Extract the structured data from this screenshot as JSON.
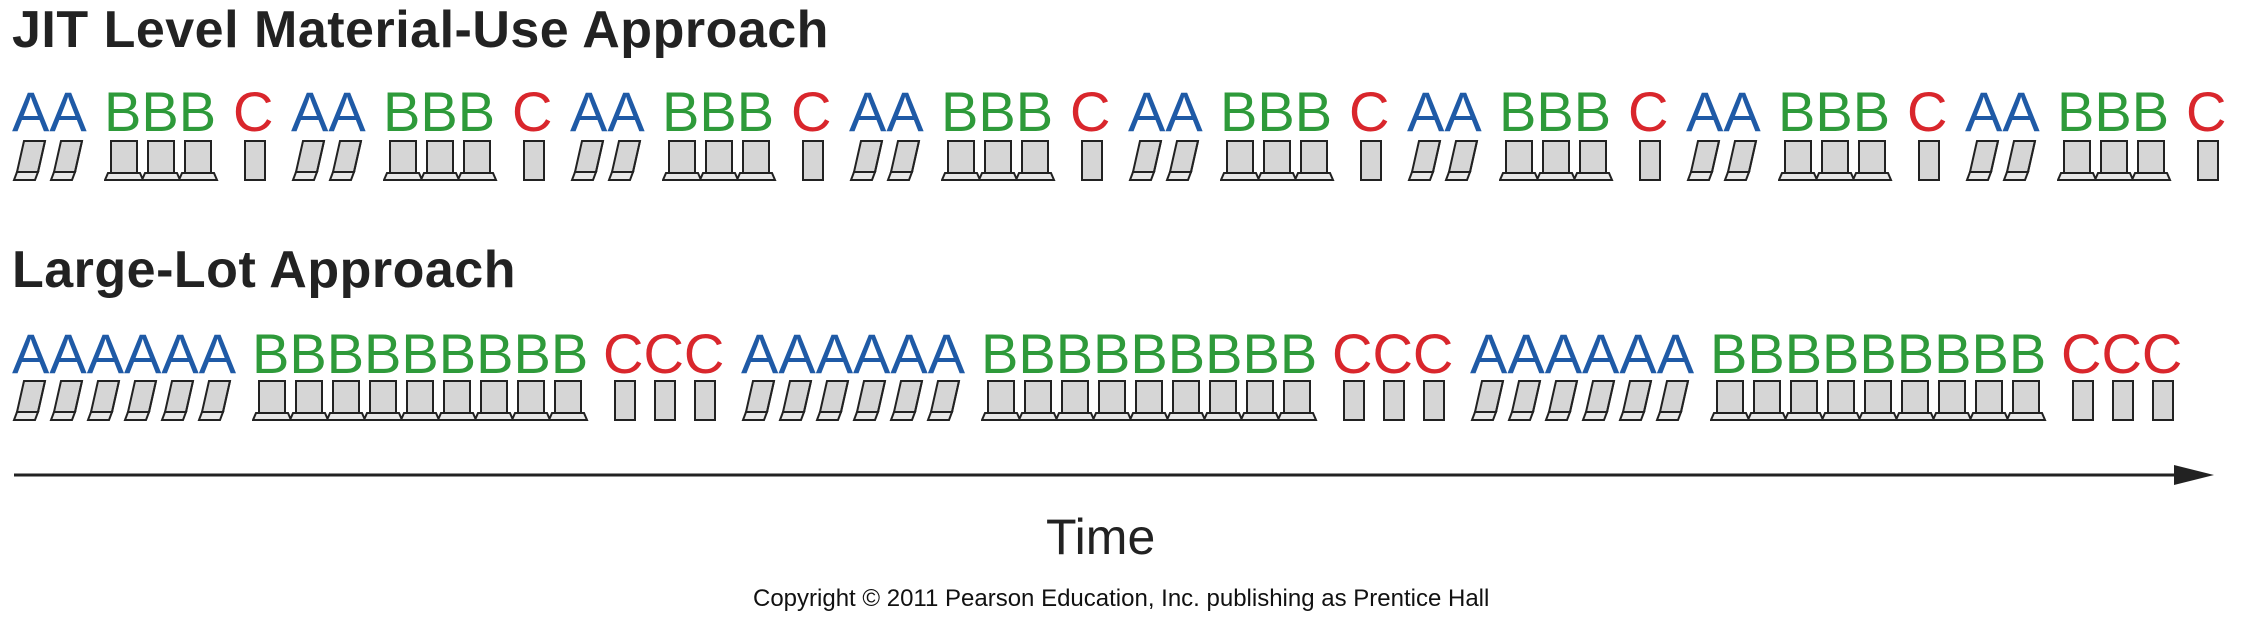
{
  "jit": {
    "title": "JIT Level Material-Use Approach",
    "pattern": [
      "AA",
      "BBB",
      "C"
    ],
    "repetitions": 8
  },
  "large_lot": {
    "title": "Large-Lot Approach",
    "pattern": [
      "AAAAAA",
      "BBBBBBBBB",
      "CCC"
    ],
    "repetitions": 3
  },
  "products": {
    "A": {
      "color": "#1f5aa6",
      "icon": "laptop-icon"
    },
    "B": {
      "color": "#2e9a3a",
      "icon": "laptop-icon"
    },
    "C": {
      "color": "#d9262c",
      "icon": "tablet-icon"
    }
  },
  "axis": {
    "label": "Time"
  },
  "copyright": "Copyright © 2011 Pearson Education, Inc. publishing as Prentice Hall"
}
